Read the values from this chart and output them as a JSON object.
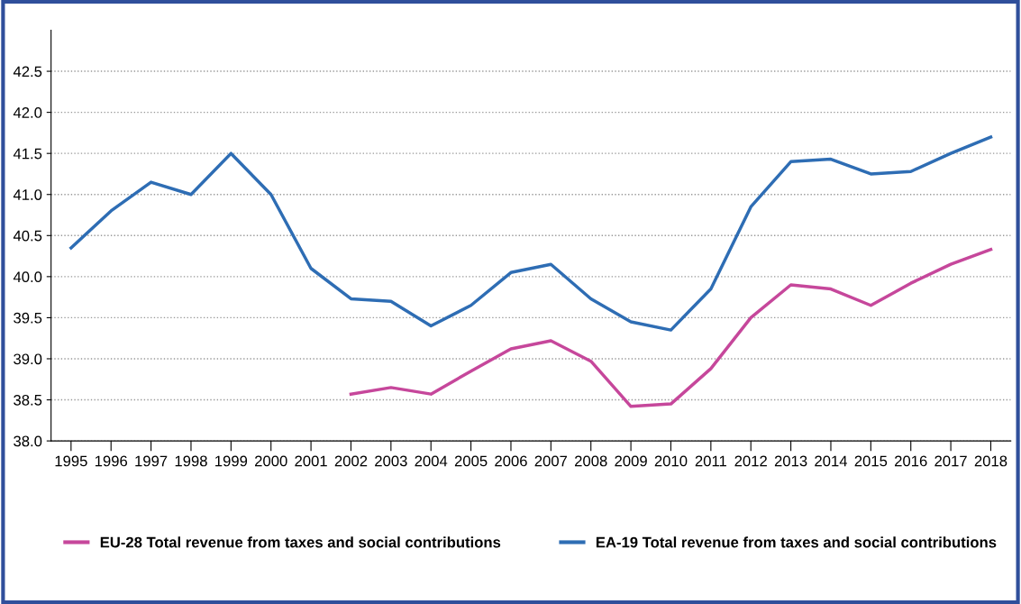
{
  "chart_data": {
    "type": "line",
    "categories": [
      "1995",
      "1996",
      "1997",
      "1998",
      "1999",
      "2000",
      "2001",
      "2002",
      "2003",
      "2004",
      "2005",
      "2006",
      "2007",
      "2008",
      "2009",
      "2010",
      "2011",
      "2012",
      "2013",
      "2014",
      "2015",
      "2016",
      "2017",
      "2018"
    ],
    "series": [
      {
        "name": "EU-28 Total revenue from taxes and social contributions",
        "color": "#c6479b",
        "values": [
          null,
          null,
          null,
          null,
          null,
          null,
          null,
          38.57,
          38.65,
          38.57,
          38.85,
          39.12,
          39.22,
          38.97,
          38.42,
          38.45,
          38.88,
          39.5,
          39.9,
          39.85,
          39.65,
          39.92,
          40.15,
          40.33
        ]
      },
      {
        "name": "EA-19 Total revenue from taxes and social contributions",
        "color": "#2e6db4",
        "values": [
          40.35,
          40.8,
          41.15,
          41.0,
          41.5,
          41.0,
          40.1,
          39.73,
          39.7,
          39.4,
          39.65,
          40.05,
          40.15,
          39.73,
          39.45,
          39.35,
          39.85,
          40.85,
          41.4,
          41.43,
          41.25,
          41.28,
          41.5,
          41.7
        ]
      }
    ],
    "ylim": [
      38.0,
      43.0
    ],
    "yticks": [
      {
        "value": 38.0,
        "label": "38.0"
      },
      {
        "value": 38.5,
        "label": "38.5"
      },
      {
        "value": 39.0,
        "label": "39.0"
      },
      {
        "value": 39.5,
        "label": "39.5"
      },
      {
        "value": 40.0,
        "label": "40.0"
      },
      {
        "value": 40.5,
        "label": "40.5"
      },
      {
        "value": 41.0,
        "label": "41.0"
      },
      {
        "value": 41.5,
        "label": "41.5"
      },
      {
        "value": 42.0,
        "label": "42.0"
      },
      {
        "value": 42.5,
        "label": "42.5"
      }
    ],
    "grid": "y",
    "legend": "bottom",
    "line_style": "solid",
    "marker": "none"
  }
}
